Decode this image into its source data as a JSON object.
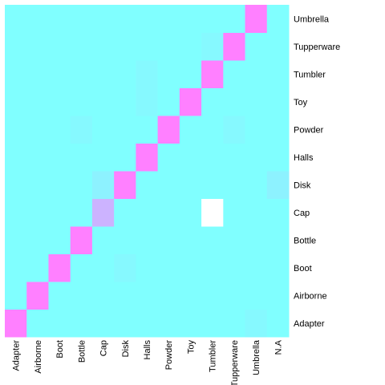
{
  "chart_data": {
    "type": "heatmap",
    "title": "",
    "xlabel": "",
    "ylabel": "",
    "x_categories": [
      "Adapter",
      "Airborne",
      "Boot",
      "Bottle",
      "Cap",
      "Disk",
      "Halls",
      "Powder",
      "Toy",
      "Tumbler",
      "Tupperware",
      "Umbrella",
      "N.A"
    ],
    "y_categories": [
      "Adapter",
      "Airborne",
      "Boot",
      "Bottle",
      "Cap",
      "Disk",
      "Halls",
      "Powder",
      "Toy",
      "Tumbler",
      "Tupperware",
      "Umbrella"
    ],
    "values": [
      [
        1.0,
        0,
        0,
        0,
        0,
        0,
        0,
        0,
        0,
        0,
        0,
        0.05,
        0
      ],
      [
        0,
        1.0,
        0,
        0,
        0,
        0,
        0,
        0,
        0,
        0,
        0,
        0,
        0
      ],
      [
        0,
        0,
        1.0,
        0,
        0,
        0.05,
        0,
        0,
        0,
        0,
        0,
        0,
        0
      ],
      [
        0,
        0,
        0,
        1.0,
        0,
        0,
        0,
        0,
        0,
        0,
        0,
        0,
        0
      ],
      [
        0,
        0,
        0,
        0,
        0.6,
        0,
        0,
        0,
        0,
        "white",
        0,
        0,
        0
      ],
      [
        0,
        0,
        0,
        0,
        0.1,
        1.0,
        0,
        0,
        0,
        0,
        0,
        0,
        0.1
      ],
      [
        0,
        0,
        0,
        0,
        0,
        0,
        1.0,
        0,
        0,
        0,
        0,
        0,
        0
      ],
      [
        0,
        0,
        0,
        0.05,
        0,
        0,
        0,
        1.0,
        0,
        0,
        0.05,
        0,
        0
      ],
      [
        0,
        0,
        0,
        0,
        0,
        0,
        0.05,
        0,
        1.0,
        0,
        0,
        0,
        0
      ],
      [
        0,
        0,
        0,
        0,
        0,
        0,
        0.05,
        0,
        0,
        1.0,
        0,
        0,
        0
      ],
      [
        0,
        0,
        0,
        0,
        0,
        0,
        0,
        0,
        0,
        0.05,
        1.0,
        0,
        0
      ],
      [
        0,
        0,
        0,
        0,
        0,
        0,
        0,
        0,
        0,
        0,
        0,
        1.0,
        0
      ]
    ],
    "color_low": "#80FFFF",
    "color_high": "#FF80FF",
    "color_special": "#FFFFFF",
    "grid": false,
    "legend": "none"
  }
}
